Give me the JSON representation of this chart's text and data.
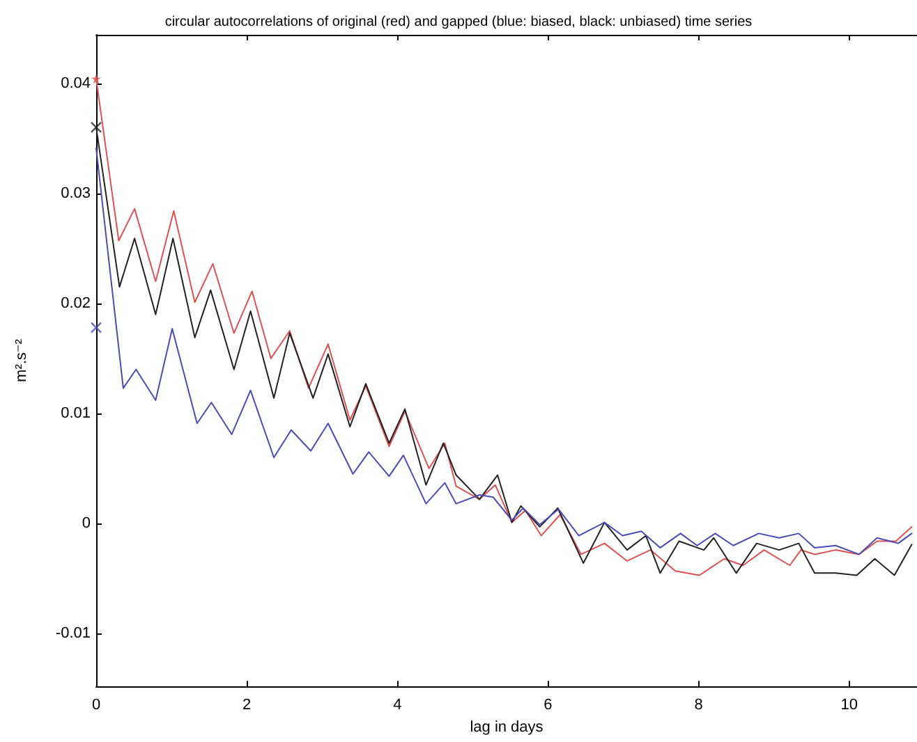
{
  "chart_data": {
    "type": "line",
    "title": "circular autocorrelations of original (red) and gapped (blue: biased, black: unbiased) time series",
    "xlabel": "lag in days",
    "ylabel": "m².s⁻²",
    "xlim": [
      0,
      10.9
    ],
    "xticks": [
      0,
      2,
      4,
      6,
      8,
      10
    ],
    "ylim": [
      -0.0148,
      0.0444
    ],
    "yticks": [
      -0.01,
      0,
      0.01,
      0.02,
      0.03,
      0.04
    ],
    "grid": false,
    "line_style": "solid",
    "series": [
      {
        "color": "#e05050",
        "x": [
          0,
          0.3,
          0.51,
          0.79,
          1.03,
          1.31,
          1.55,
          1.83,
          2.07,
          2.32,
          2.57,
          2.82,
          3.08,
          3.37,
          3.58,
          3.89,
          4.1,
          4.42,
          4.63,
          4.78,
          5.09,
          5.3,
          5.52,
          5.7,
          5.91,
          6.16,
          6.44,
          6.75,
          7.05,
          7.36,
          7.69,
          8.01,
          8.34,
          8.59,
          8.87,
          9.21,
          9.36,
          9.54,
          9.82,
          10.13,
          10.37,
          10.62,
          10.83
        ],
        "values": [
          0.0404,
          0.0257,
          0.0286,
          0.022,
          0.0284,
          0.0201,
          0.0236,
          0.0173,
          0.0211,
          0.015,
          0.0175,
          0.0123,
          0.0163,
          0.0094,
          0.0125,
          0.007,
          0.0102,
          0.005,
          0.0073,
          0.0034,
          0.0022,
          0.0035,
          0.0001,
          0.0012,
          -0.0011,
          0.0008,
          -0.0028,
          -0.0018,
          -0.0034,
          -0.0024,
          -0.0043,
          -0.0047,
          -0.0032,
          -0.0038,
          -0.0024,
          -0.0038,
          -0.0024,
          -0.0028,
          -0.0024,
          -0.0028,
          -0.0016,
          -0.0016,
          -0.0003
        ]
      },
      {
        "color": "#222222",
        "x": [
          0,
          0.31,
          0.51,
          0.79,
          1.02,
          1.31,
          1.52,
          1.83,
          2.05,
          2.36,
          2.57,
          2.88,
          3.08,
          3.37,
          3.58,
          3.89,
          4.1,
          4.38,
          4.61,
          4.78,
          5.09,
          5.33,
          5.52,
          5.64,
          5.89,
          6.13,
          6.47,
          6.75,
          7.05,
          7.3,
          7.49,
          7.74,
          8.07,
          8.2,
          8.5,
          8.77,
          9.07,
          9.33,
          9.54,
          9.82,
          10.1,
          10.34,
          10.6,
          10.83
        ],
        "values": [
          0.036,
          0.0215,
          0.0259,
          0.019,
          0.0259,
          0.0169,
          0.0212,
          0.014,
          0.0193,
          0.0114,
          0.0173,
          0.0114,
          0.0154,
          0.0088,
          0.0127,
          0.0073,
          0.0104,
          0.0035,
          0.0073,
          0.0044,
          0.0022,
          0.0044,
          0.0001,
          0.0016,
          -0.0003,
          0.0014,
          -0.0036,
          0.0001,
          -0.0024,
          -0.0011,
          -0.0045,
          -0.0016,
          -0.0024,
          -0.0013,
          -0.0045,
          -0.0018,
          -0.0024,
          -0.0018,
          -0.0045,
          -0.0045,
          -0.0047,
          -0.0032,
          -0.0047,
          -0.0019
        ]
      },
      {
        "color": "#4a4ab8",
        "x": [
          0,
          0.36,
          0.53,
          0.79,
          1.01,
          1.34,
          1.53,
          1.8,
          2.05,
          2.36,
          2.59,
          2.85,
          3.08,
          3.41,
          3.62,
          3.89,
          4.08,
          4.38,
          4.63,
          4.78,
          5.09,
          5.27,
          5.52,
          5.67,
          5.89,
          6.14,
          6.41,
          6.75,
          6.99,
          7.24,
          7.49,
          7.76,
          7.98,
          8.22,
          8.46,
          8.8,
          9.07,
          9.33,
          9.54,
          9.82,
          10.13,
          10.37,
          10.65,
          10.83
        ],
        "values": [
          0.0341,
          0.0123,
          0.014,
          0.0112,
          0.0177,
          0.0091,
          0.011,
          0.0081,
          0.0121,
          0.006,
          0.0085,
          0.0066,
          0.0091,
          0.0045,
          0.0065,
          0.0043,
          0.0062,
          0.0018,
          0.0037,
          0.0018,
          0.0026,
          0.0024,
          0.0003,
          0.0014,
          -0.0001,
          0.0013,
          -0.0011,
          0.0001,
          -0.0011,
          -0.0007,
          -0.0022,
          -0.0009,
          -0.002,
          -0.0009,
          -0.002,
          -0.0009,
          -0.0013,
          -0.0009,
          -0.0022,
          -0.002,
          -0.0028,
          -0.0013,
          -0.0018,
          -0.0009
        ]
      },
      {
        "type": "scatter",
        "marker": "star",
        "color": "#e05050",
        "x": [
          0
        ],
        "values": [
          0.0404
        ]
      },
      {
        "type": "scatter",
        "marker": "cross",
        "color": "#222222",
        "x": [
          0
        ],
        "values": [
          0.036
        ]
      },
      {
        "type": "scatter",
        "marker": "cross",
        "color": "#4a4ab8",
        "x": [
          0
        ],
        "values": [
          0.0178
        ]
      }
    ]
  }
}
